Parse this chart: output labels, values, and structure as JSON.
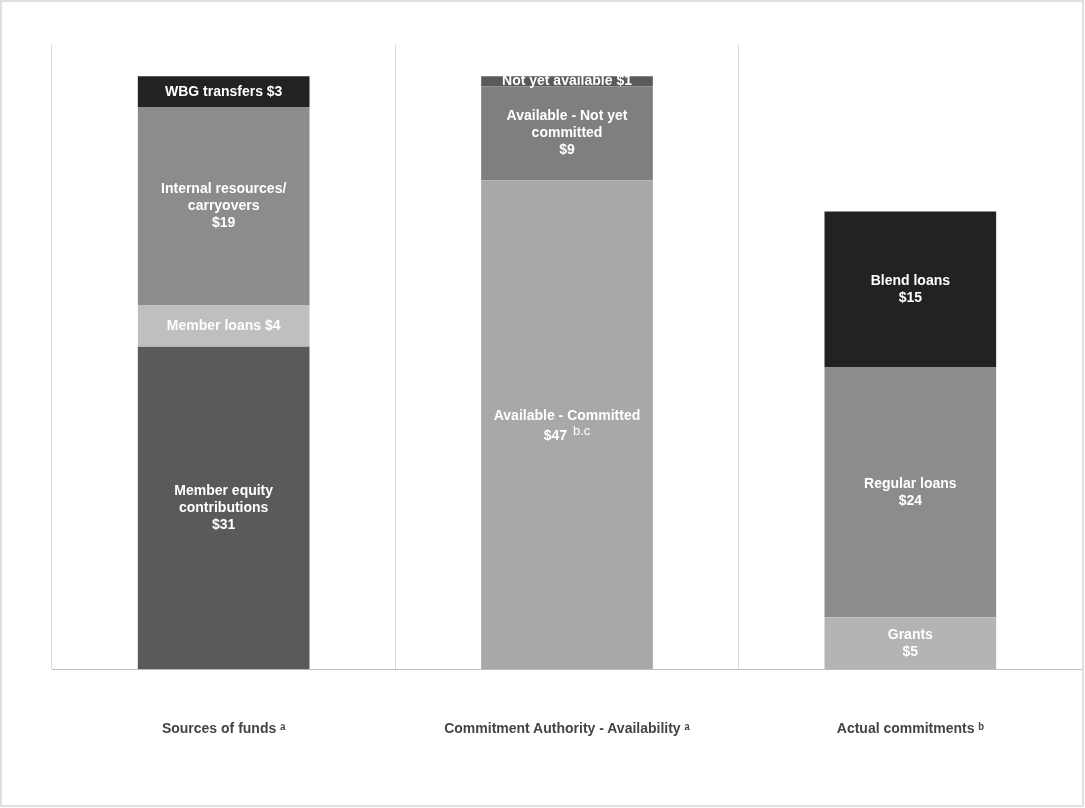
{
  "chart_data": {
    "type": "bar",
    "stacked": true,
    "categories": [
      "Sources of funds ᵃ",
      "Commitment Authority - Availability ᵃ",
      "Actual commitments ᵇ"
    ],
    "ylim": [
      0,
      60
    ],
    "tick_labels": "x",
    "grid": "x",
    "legend": false,
    "series": [
      {
        "name": "Member equity contributions",
        "color": "#5a5a5a",
        "values": [
          31,
          null,
          null
        ],
        "value_labels": [
          "$31",
          null,
          null
        ]
      },
      {
        "name": "Member loans",
        "color": "#bfbfbf",
        "values": [
          4,
          null,
          null
        ],
        "value_labels": [
          "$4",
          null,
          null
        ]
      },
      {
        "name": "Internal resources/ carryovers",
        "color": "#8c8c8c",
        "values": [
          19,
          null,
          null
        ],
        "value_labels": [
          "$19",
          null,
          null
        ]
      },
      {
        "name": "WBG transfers",
        "color": "#222222",
        "values": [
          3,
          null,
          null
        ],
        "value_labels": [
          "$3",
          null,
          null
        ]
      },
      {
        "name": "Available - Committed",
        "color": "#a8a8a8",
        "values": [
          null,
          47,
          null
        ],
        "value_labels": [
          null,
          "$47$^{b.c}$",
          null
        ]
      },
      {
        "name": "Available - Not yet committed",
        "color": "#7f7f7f",
        "values": [
          null,
          9,
          null
        ],
        "value_labels": [
          null,
          "$9",
          null
        ]
      },
      {
        "name": "Not yet available",
        "color": "#5a5a5a",
        "values": [
          null,
          1,
          null
        ],
        "value_labels": [
          null,
          "$1",
          null
        ]
      },
      {
        "name": "Grants",
        "color": "#b4b4b4",
        "values": [
          null,
          null,
          5
        ],
        "value_labels": [
          null,
          null,
          "$5"
        ]
      },
      {
        "name": "Regular loans",
        "color": "#8c8c8c",
        "values": [
          null,
          null,
          24
        ],
        "value_labels": [
          null,
          null,
          "$24"
        ]
      },
      {
        "name": "Blend loans",
        "color": "#222222",
        "values": [
          null,
          null,
          15
        ],
        "value_labels": [
          null,
          null,
          "$15"
        ]
      }
    ]
  }
}
